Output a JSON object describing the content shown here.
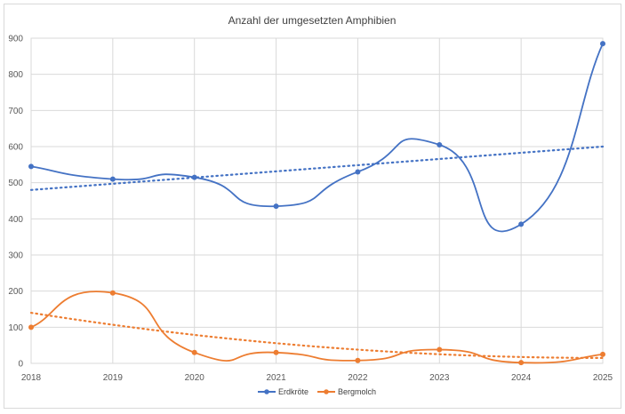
{
  "chart_data": {
    "type": "line",
    "title": "Anzahl der umgesetzten Amphibien",
    "xlabel": "",
    "ylabel": "",
    "categories": [
      "2018",
      "2019",
      "2020",
      "2021",
      "2022",
      "2023",
      "2024",
      "2025"
    ],
    "ylim": [
      0,
      900
    ],
    "yticks": [
      0,
      100,
      200,
      300,
      400,
      500,
      600,
      700,
      800,
      900
    ],
    "grid": true,
    "smoothed": true,
    "legend_position": "bottom",
    "series": [
      {
        "name": "Erdkröte",
        "color": "#4472c4",
        "values": [
          545,
          510,
          515,
          435,
          530,
          605,
          385,
          885
        ],
        "trendline": "linear",
        "trend_values": [
          480,
          600
        ]
      },
      {
        "name": "Bergmolch",
        "color": "#ed7d31",
        "values": [
          100,
          195,
          30,
          30,
          8,
          38,
          2,
          25
        ],
        "trendline": "polynomial",
        "trend_values": [
          140,
          15
        ]
      }
    ]
  }
}
